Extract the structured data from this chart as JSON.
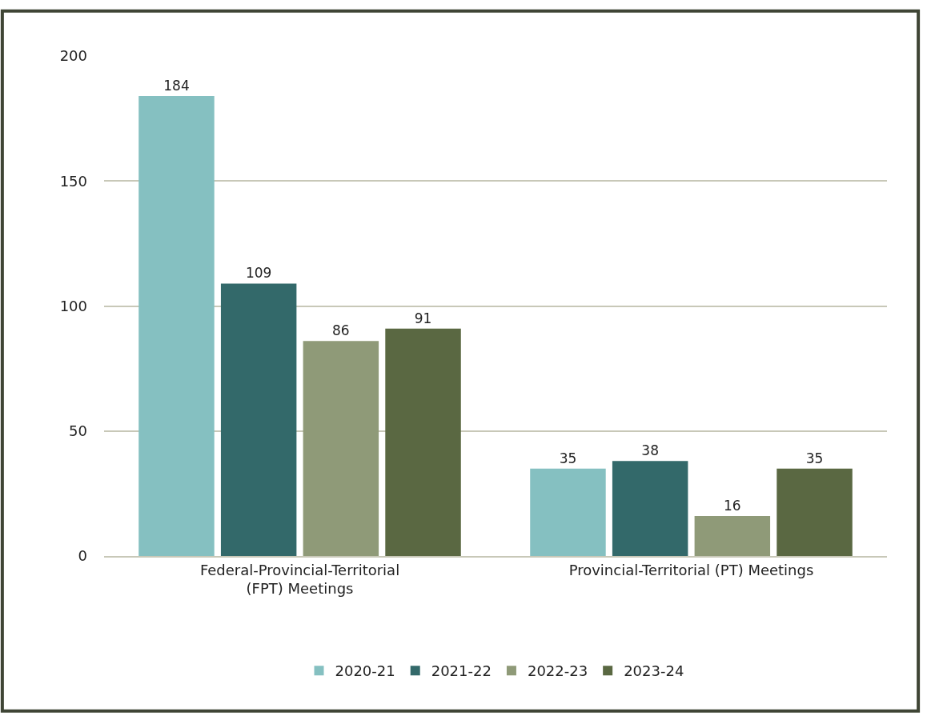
{
  "chart_data": {
    "type": "bar",
    "categories": [
      "Federal-Provincial-Territorial\n(FPT) Meetings",
      "Provincial-Territorial (PT) Meetings"
    ],
    "series": [
      {
        "name": "2020-21",
        "color": "#85c0c1",
        "values": [
          184,
          35
        ]
      },
      {
        "name": "2021-22",
        "color": "#33696a",
        "values": [
          109,
          38
        ]
      },
      {
        "name": "2022-23",
        "color": "#8f9a78",
        "values": [
          86,
          16
        ]
      },
      {
        "name": "2023-24",
        "color": "#5a6842",
        "values": [
          91,
          35
        ]
      }
    ],
    "ylim": [
      0,
      200
    ],
    "yticks": [
      0,
      50,
      100,
      150,
      200
    ],
    "grid": "y",
    "legend": "bottom",
    "data_labels": true
  }
}
